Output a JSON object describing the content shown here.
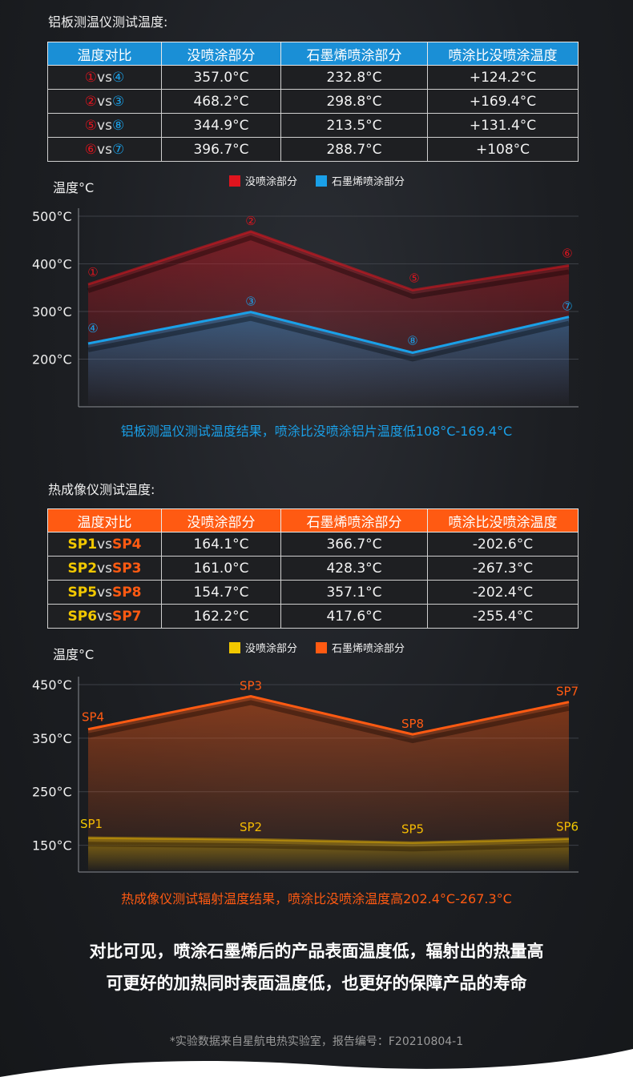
{
  "section1": {
    "title": "铝板测温仪测试温度:",
    "headers": [
      "温度对比",
      "没喷涂部分",
      "石墨烯喷涂部分",
      "喷涂比没喷涂温度"
    ],
    "rows": [
      {
        "a": "①",
        "vs": "vs",
        "b": "④",
        "bare": "357.0°C",
        "coated": "232.8°C",
        "diff": "+124.2°C"
      },
      {
        "a": "②",
        "vs": "vs",
        "b": "③",
        "bare": "468.2°C",
        "coated": "298.8°C",
        "diff": "+169.4°C"
      },
      {
        "a": "⑤",
        "vs": "vs",
        "b": "⑧",
        "bare": "344.9°C",
        "coated": "213.5°C",
        "diff": "+131.4°C"
      },
      {
        "a": "⑥",
        "vs": "vs",
        "b": "⑦",
        "bare": "396.7°C",
        "coated": "288.7°C",
        "diff": "+108°C"
      }
    ],
    "caption": "铝板测温仪测试温度结果，喷涂比没喷涂铝片温度低108°C-169.4°C"
  },
  "section2": {
    "title": "热成像仪测试温度:",
    "headers": [
      "温度对比",
      "没喷涂部分",
      "石墨烯喷涂部分",
      "喷涂比没喷涂温度"
    ],
    "rows": [
      {
        "a": "SP1",
        "vs": "vs",
        "b": "SP4",
        "bare": "164.1°C",
        "coated": "366.7°C",
        "diff": "-202.6°C"
      },
      {
        "a": "SP2",
        "vs": "vs",
        "b": "SP3",
        "bare": "161.0°C",
        "coated": "428.3°C",
        "diff": "-267.3°C"
      },
      {
        "a": "SP5",
        "vs": "vs",
        "b": "SP8",
        "bare": "154.7°C",
        "coated": "357.1°C",
        "diff": "-202.4°C"
      },
      {
        "a": "SP6",
        "vs": "vs",
        "b": "SP7",
        "bare": "162.2°C",
        "coated": "417.6°C",
        "diff": "-255.4°C"
      }
    ],
    "caption": "热成像仪测试辐射温度结果，喷涂比没喷涂温度高202.4°C-267.3°C"
  },
  "colors": {
    "red": "#e0141e",
    "blue": "#1aa0e8",
    "yellow": "#f2c800",
    "orange": "#ff5a12"
  },
  "chart_data": [
    {
      "type": "line",
      "ylabel": "温度°C",
      "ylim": [
        100,
        500
      ],
      "yticks": [
        200,
        300,
        400,
        500
      ],
      "ytick_labels": [
        "200°C",
        "300°C",
        "400°C",
        "500°C"
      ],
      "legend": "top-center",
      "series": [
        {
          "name": "没喷涂部分",
          "color": "#e0141e",
          "values": [
            357.0,
            468.2,
            344.9,
            396.7
          ],
          "point_labels": [
            "①",
            "②",
            "⑤",
            "⑥"
          ]
        },
        {
          "name": "石墨烯喷涂部分",
          "color": "#1aa0e8",
          "values": [
            232.8,
            298.8,
            213.5,
            288.7
          ],
          "point_labels": [
            "④",
            "③",
            "⑧",
            "⑦"
          ]
        }
      ]
    },
    {
      "type": "line",
      "ylabel": "温度°C",
      "ylim": [
        100,
        450
      ],
      "yticks": [
        150,
        250,
        350,
        450
      ],
      "ytick_labels": [
        "150°C",
        "250°C",
        "350°C",
        "450°C"
      ],
      "legend": "top-center",
      "series": [
        {
          "name": "没喷涂部分",
          "color": "#f2c800",
          "values": [
            164.1,
            161.0,
            154.7,
            162.2
          ],
          "point_labels": [
            "SP1",
            "SP2",
            "SP5",
            "SP6"
          ]
        },
        {
          "name": "石墨烯喷涂部分",
          "color": "#ff5a12",
          "values": [
            366.7,
            428.3,
            357.1,
            417.6
          ],
          "point_labels": [
            "SP4",
            "SP3",
            "SP8",
            "SP7"
          ]
        }
      ]
    }
  ],
  "conclusion": [
    "对比可见，喷涂石墨烯后的产品表面温度低，辐射出的热量高",
    "可更好的加热同时表面温度低，也更好的保障产品的寿命"
  ],
  "footnote": "*实验数据来自星航电热实验室，报告编号：F20210804-1"
}
